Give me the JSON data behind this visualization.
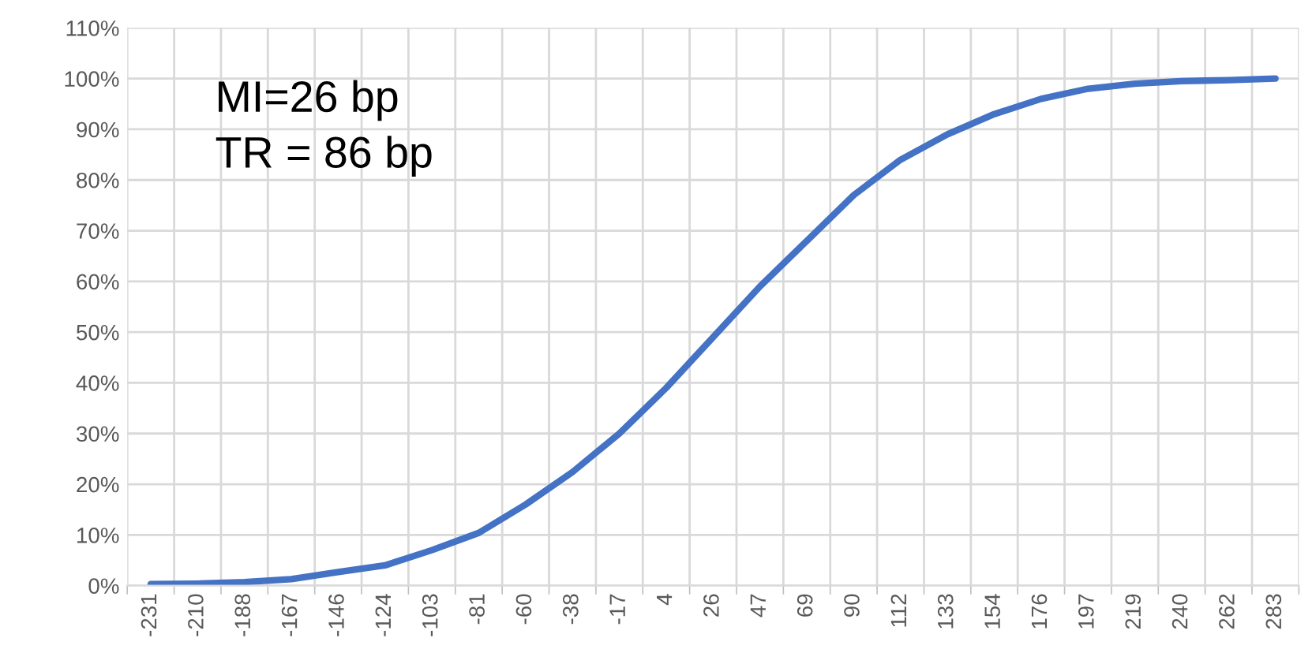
{
  "chart_data": {
    "type": "line",
    "categories": [
      "-231",
      "-210",
      "-188",
      "-167",
      "-146",
      "-124",
      "-103",
      "-81",
      "-60",
      "-38",
      "-17",
      "4",
      "26",
      "47",
      "69",
      "90",
      "112",
      "133",
      "154",
      "176",
      "197",
      "219",
      "240",
      "262",
      "283"
    ],
    "series": [
      {
        "color": "#4472c4",
        "values": [
          0.3,
          0.4,
          0.7,
          1.3,
          2.7,
          4.0,
          7.0,
          10.4,
          16,
          22.4,
          30,
          39,
          49,
          59,
          68,
          77,
          84,
          89,
          93,
          96,
          98,
          99,
          99.5,
          99.7,
          100
        ]
      }
    ],
    "ylim": [
      0,
      110
    ],
    "yticks": [
      {
        "value": 0,
        "label": "0%"
      },
      {
        "value": 10,
        "label": "10%"
      },
      {
        "value": 20,
        "label": "20%"
      },
      {
        "value": 30,
        "label": "30%"
      },
      {
        "value": 40,
        "label": "40%"
      },
      {
        "value": 50,
        "label": "50%"
      },
      {
        "value": 60,
        "label": "60%"
      },
      {
        "value": 70,
        "label": "70%"
      },
      {
        "value": 80,
        "label": "80%"
      },
      {
        "value": 90,
        "label": "90%"
      },
      {
        "value": 100,
        "label": "100%"
      },
      {
        "value": 110,
        "label": "110%"
      }
    ],
    "annotations": [
      "MI=26 bp",
      "TR = 86 bp"
    ],
    "grid": true,
    "marker": "none",
    "line_style": "solid"
  }
}
